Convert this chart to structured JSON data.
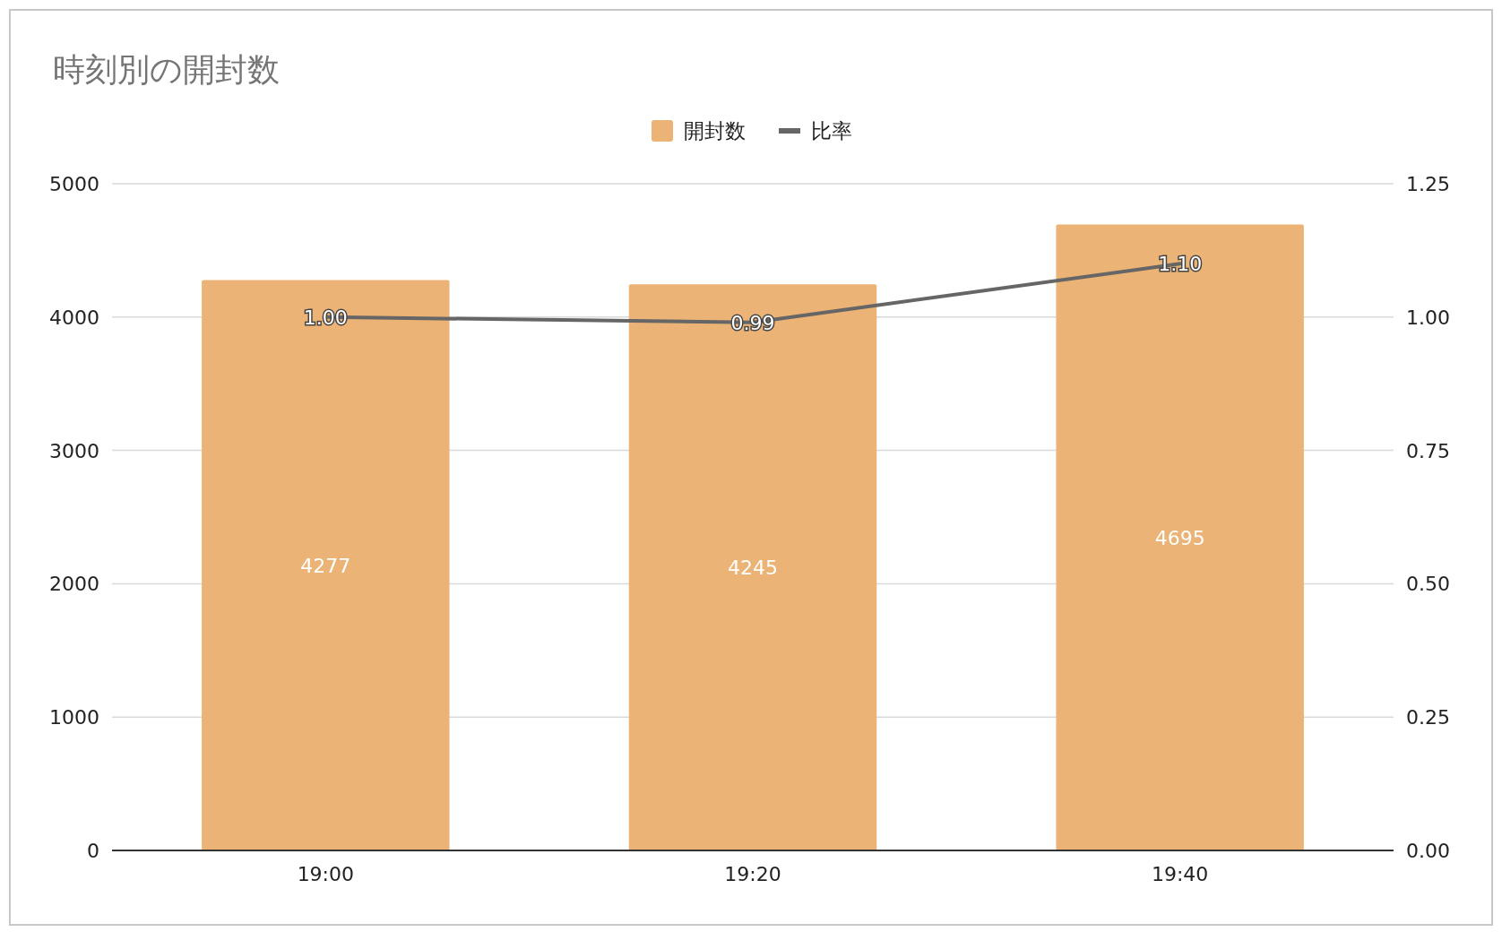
{
  "chart_data": {
    "type": "bar",
    "title": "時刻別の開封数",
    "categories": [
      "19:00",
      "19:20",
      "19:40"
    ],
    "series": [
      {
        "name": "開封数",
        "color": "#ebb375",
        "values": [
          4277,
          4245,
          4695
        ]
      },
      {
        "name": "比率",
        "type": "line",
        "axis": "y2",
        "color": "#666666",
        "values": [
          1.0,
          0.99,
          1.1
        ],
        "value_labels": [
          "1.00",
          "0.99",
          "1.10"
        ]
      }
    ],
    "ylim": [
      0,
      5000
    ],
    "yticks": [
      0,
      1000,
      2000,
      3000,
      4000,
      5000
    ],
    "y2lim": [
      0,
      1.25
    ],
    "y2ticks": [
      {
        "value": 0,
        "label": "0.00"
      },
      {
        "value": 0.25,
        "label": "0.25"
      },
      {
        "value": 0.5,
        "label": "0.50"
      },
      {
        "value": 0.75,
        "label": "0.75"
      },
      {
        "value": 1,
        "label": "1.00"
      },
      {
        "value": 1.25,
        "label": "1.25"
      }
    ],
    "data_labels": true,
    "legend": "top",
    "grid": "y"
  }
}
